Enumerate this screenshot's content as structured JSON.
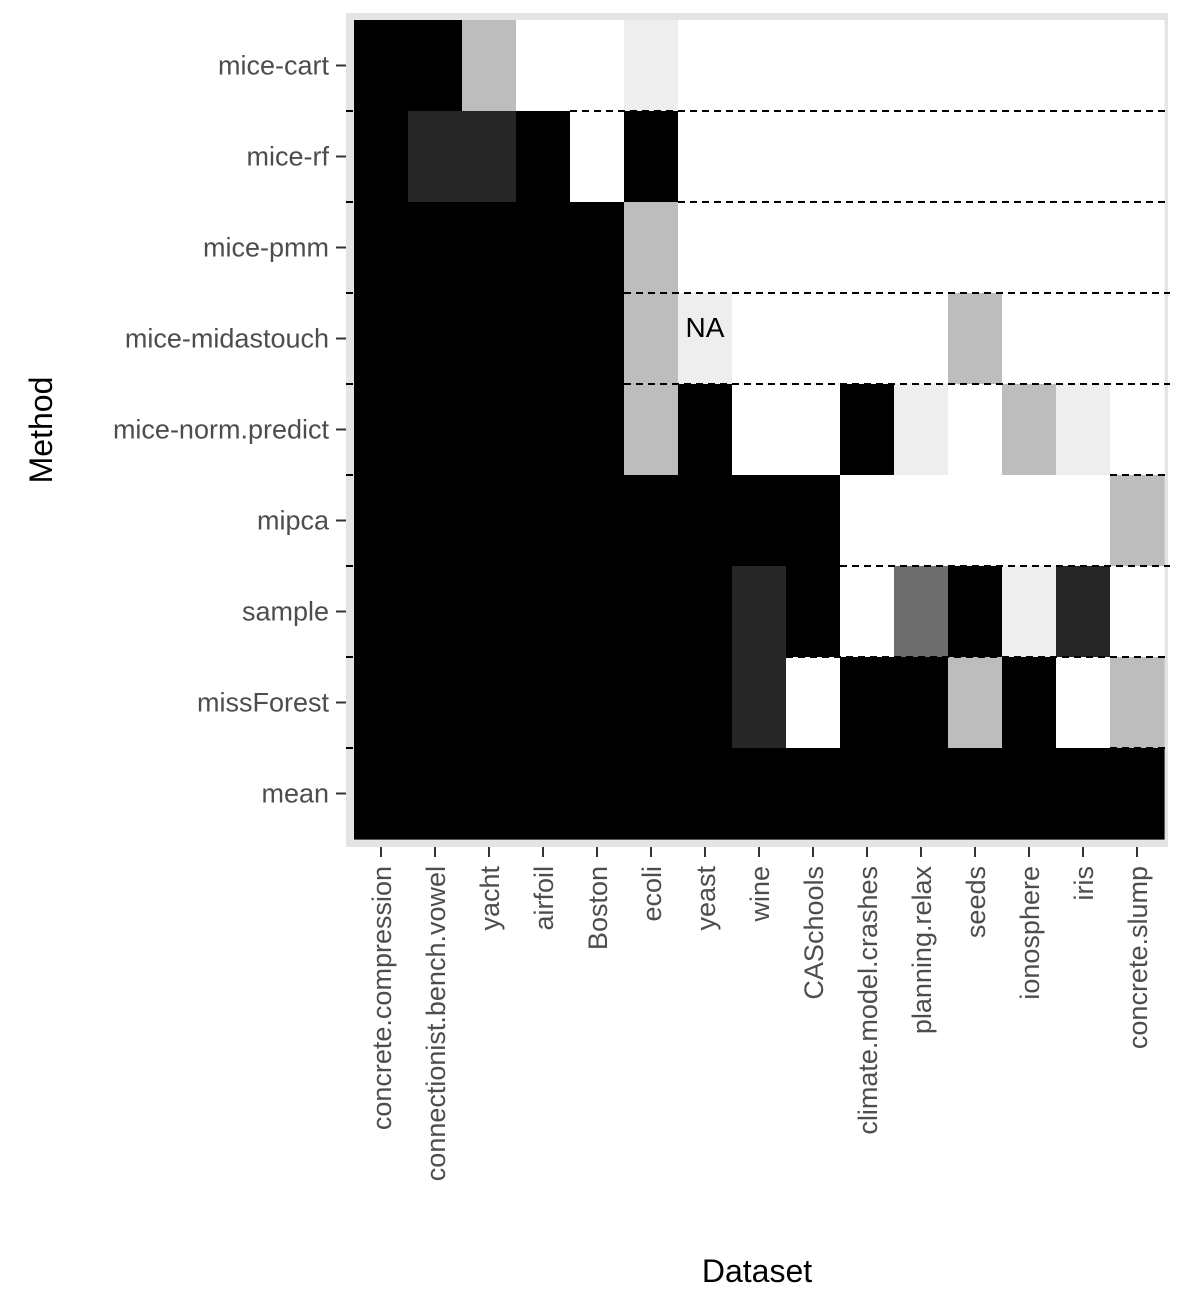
{
  "chart_data": {
    "type": "heatmap",
    "xlabel": "Dataset",
    "ylabel": "Method",
    "categories": [
      "concrete.compression",
      "connectionist.bench.vowel",
      "yacht",
      "airfoil",
      "Boston",
      "ecoli",
      "yeast",
      "wine",
      "CASchools",
      "climate.model.crashes",
      "planning.relax",
      "seeds",
      "ionosphere",
      "iris",
      "concrete.slump"
    ],
    "methods": [
      "mice-cart",
      "mice-rf",
      "mice-pmm",
      "mice-midastouch",
      "mice-norm.predict",
      "mipca",
      "sample",
      "missForest",
      "mean"
    ],
    "cell_colors": [
      [
        "#000000",
        "#000000",
        "#bdbdbd",
        "#ffffff",
        "#ffffff",
        "#eeeeee",
        "#ffffff",
        "#ffffff",
        "#ffffff",
        "#ffffff",
        "#ffffff",
        "#ffffff",
        "#ffffff",
        "#ffffff",
        "#ffffff"
      ],
      [
        "#000000",
        "#262626",
        "#262626",
        "#000000",
        "#ffffff",
        "#000000",
        "#ffffff",
        "#ffffff",
        "#ffffff",
        "#ffffff",
        "#ffffff",
        "#ffffff",
        "#ffffff",
        "#ffffff",
        "#ffffff"
      ],
      [
        "#000000",
        "#000000",
        "#000000",
        "#000000",
        "#000000",
        "#bdbdbd",
        "#ffffff",
        "#ffffff",
        "#ffffff",
        "#ffffff",
        "#ffffff",
        "#ffffff",
        "#ffffff",
        "#ffffff",
        "#ffffff"
      ],
      [
        "#000000",
        "#000000",
        "#000000",
        "#000000",
        "#000000",
        "#bdbdbd",
        "#eeeeee",
        "#ffffff",
        "#ffffff",
        "#ffffff",
        "#ffffff",
        "#bdbdbd",
        "#ffffff",
        "#ffffff",
        "#ffffff"
      ],
      [
        "#000000",
        "#000000",
        "#000000",
        "#000000",
        "#000000",
        "#bdbdbd",
        "#000000",
        "#ffffff",
        "#ffffff",
        "#000000",
        "#eeeeee",
        "#ffffff",
        "#bdbdbd",
        "#eeeeee",
        "#ffffff"
      ],
      [
        "#000000",
        "#000000",
        "#000000",
        "#000000",
        "#000000",
        "#000000",
        "#000000",
        "#000000",
        "#000000",
        "#ffffff",
        "#ffffff",
        "#ffffff",
        "#ffffff",
        "#ffffff",
        "#bdbdbd"
      ],
      [
        "#000000",
        "#000000",
        "#000000",
        "#000000",
        "#000000",
        "#000000",
        "#000000",
        "#262626",
        "#000000",
        "#ffffff",
        "#6e6e6e",
        "#000000",
        "#eeeeee",
        "#262626",
        "#ffffff"
      ],
      [
        "#000000",
        "#000000",
        "#000000",
        "#000000",
        "#000000",
        "#000000",
        "#000000",
        "#262626",
        "#ffffff",
        "#000000",
        "#000000",
        "#bdbdbd",
        "#000000",
        "#ffffff",
        "#bdbdbd"
      ],
      [
        "#000000",
        "#000000",
        "#000000",
        "#000000",
        "#000000",
        "#000000",
        "#000000",
        "#000000",
        "#000000",
        "#000000",
        "#000000",
        "#000000",
        "#000000",
        "#000000",
        "#000000"
      ]
    ],
    "annotations": [
      {
        "text": "NA",
        "method": "mice-midastouch",
        "dataset": "yeast"
      }
    ],
    "dashed_boundaries": [
      {
        "between": [
          "mice-cart",
          "mice-rf"
        ],
        "from_dataset": "Boston"
      },
      {
        "between": [
          "mice-rf",
          "mice-pmm"
        ],
        "from_dataset": "yeast"
      },
      {
        "between": [
          "mice-pmm",
          "mice-midastouch"
        ],
        "from_dataset": "ecoli"
      },
      {
        "between": [
          "mice-midastouch",
          "mice-norm.predict"
        ],
        "from_dataset": "ecoli"
      },
      {
        "between": [
          "mice-norm.predict",
          "mipca"
        ],
        "from_dataset": "concrete.slump"
      },
      {
        "between": [
          "mipca",
          "sample"
        ],
        "from_dataset": "climate.model.crashes"
      },
      {
        "between": [
          "sample",
          "missForest"
        ],
        "from_dataset": "CASchools"
      },
      {
        "between": [
          "missForest",
          "mean"
        ],
        "from_dataset": "concrete.slump"
      }
    ],
    "grid": false,
    "panel_border_color": "#e4e4e4"
  }
}
